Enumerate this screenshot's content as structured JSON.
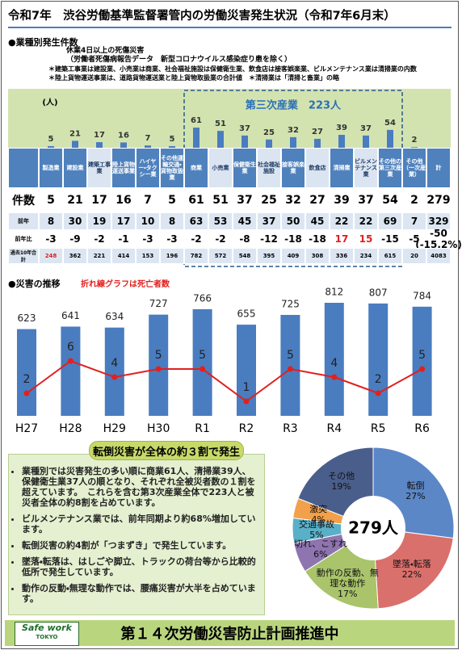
{
  "title": "令和7年　渋谷労働基準監督署管内の労働災害発生状況（令和7年6月末）",
  "section1": "●業種別発生件数",
  "notes": [
    "休業4日以上の死傷災害",
    "（労働者死傷病報告データ　新型コロナウイルス感染症り患を除く）",
    "＊建築工事業は建設業、小売業は商業、社会福祉施設は保健衛生業、飲食店は接客娯楽業、ビルメンテナンス業は清掃業の内数",
    "＊陸上貨物運送事業は、道路貨物運送業と陸上貨物取扱業の合計値　＊清掃業は「清掃と畜業」の略"
  ],
  "bar_panel": {
    "unit": "(人)",
    "group_label": "第三次産業　223人"
  },
  "table": {
    "columns": [
      "製造業",
      "建設業",
      "建築工事業",
      "陸上貨物運送事業",
      "ハイヤー・タクシー業",
      "その他運輸交通・貨物取扱業",
      "商業",
      "小売業",
      "保健衛生業",
      "社会福祉施設",
      "接客娯楽業",
      "飲食店",
      "清掃業",
      "ビルメンテナンス業",
      "その他の第三次産業",
      "その他（一次産業）",
      "計"
    ],
    "rows": [
      {
        "label": "件数",
        "cells": [
          5,
          21,
          17,
          16,
          7,
          5,
          61,
          51,
          37,
          25,
          32,
          27,
          39,
          37,
          54,
          2,
          279
        ]
      },
      {
        "label": "前年",
        "cells": [
          8,
          30,
          19,
          17,
          10,
          8,
          63,
          53,
          45,
          37,
          50,
          45,
          22,
          22,
          69,
          7,
          329
        ]
      },
      {
        "label": "前年比",
        "cells": [
          -3,
          -9,
          -2,
          -1,
          -3,
          -3,
          -2,
          -2,
          -8,
          -12,
          -18,
          -18,
          17,
          15,
          -15,
          -5,
          "-50 (-15.2%)"
        ]
      },
      {
        "label": "過去10年合計",
        "cells": [
          248,
          362,
          221,
          414,
          153,
          196,
          782,
          572,
          548,
          395,
          409,
          308,
          336,
          234,
          615,
          20,
          4083
        ]
      }
    ]
  },
  "chart_data": [
    {
      "type": "bar",
      "title": "●災害の推移",
      "subtitle": "折れ線グラフは死亡者数",
      "categories": [
        "H27",
        "H28",
        "H29",
        "H30",
        "R1",
        "R2",
        "R3",
        "R4",
        "R5",
        "R6"
      ],
      "series": [
        {
          "type": "bar",
          "color": "#4a7cc0",
          "values": [
            623,
            641,
            634,
            727,
            766,
            655,
            725,
            812,
            807,
            784
          ]
        },
        {
          "type": "line",
          "color": "#e0201e",
          "values": [
            2,
            6,
            4,
            5,
            5,
            1,
            5,
            4,
            2,
            5
          ]
        }
      ]
    },
    {
      "type": "pie",
      "total_label": "279人",
      "categories": [
        "転倒",
        "墜落・転落",
        "動作の反動、無理な動作",
        "切れ、こすれ",
        "交通事故",
        "激突",
        "その他"
      ],
      "values": [
        27,
        22,
        17,
        6,
        5,
        4,
        19
      ],
      "value_labels": [
        "27%",
        "22%",
        "17%",
        "6%",
        "5%",
        "4%",
        "19%"
      ],
      "colors": [
        "#5b87c7",
        "#d9706c",
        "#a9c46a",
        "#8f75b0",
        "#5ab0c8",
        "#f2a04a",
        "#4a5e8c"
      ]
    }
  ],
  "summary": {
    "heading": "転倒災害が全体の約３割で発生",
    "bullets": [
      "業種別では災害発生の多い順に商業61人、清掃業39人、保健衛生業37人の順となり、それぞれ全被災者数の１割を超えています。　これらを含む第3次産業全体で223人と被災者全体の約8割を占めています。",
      "ビルメンテナンス業では、前年同期より約68%増加しています。",
      "転倒災害の約4割が「つまずき」で発生しています。",
      "墜落・転落は、はしごや脚立、トラックの荷台等から比較的低所で発生しています。",
      "動作の反動・無理な動作では、腰痛災害が大半を占めています。"
    ]
  },
  "footer": {
    "text": "第１４次労働災害防止計画推進中",
    "logo": [
      "Safe work",
      "TOKYO"
    ]
  }
}
